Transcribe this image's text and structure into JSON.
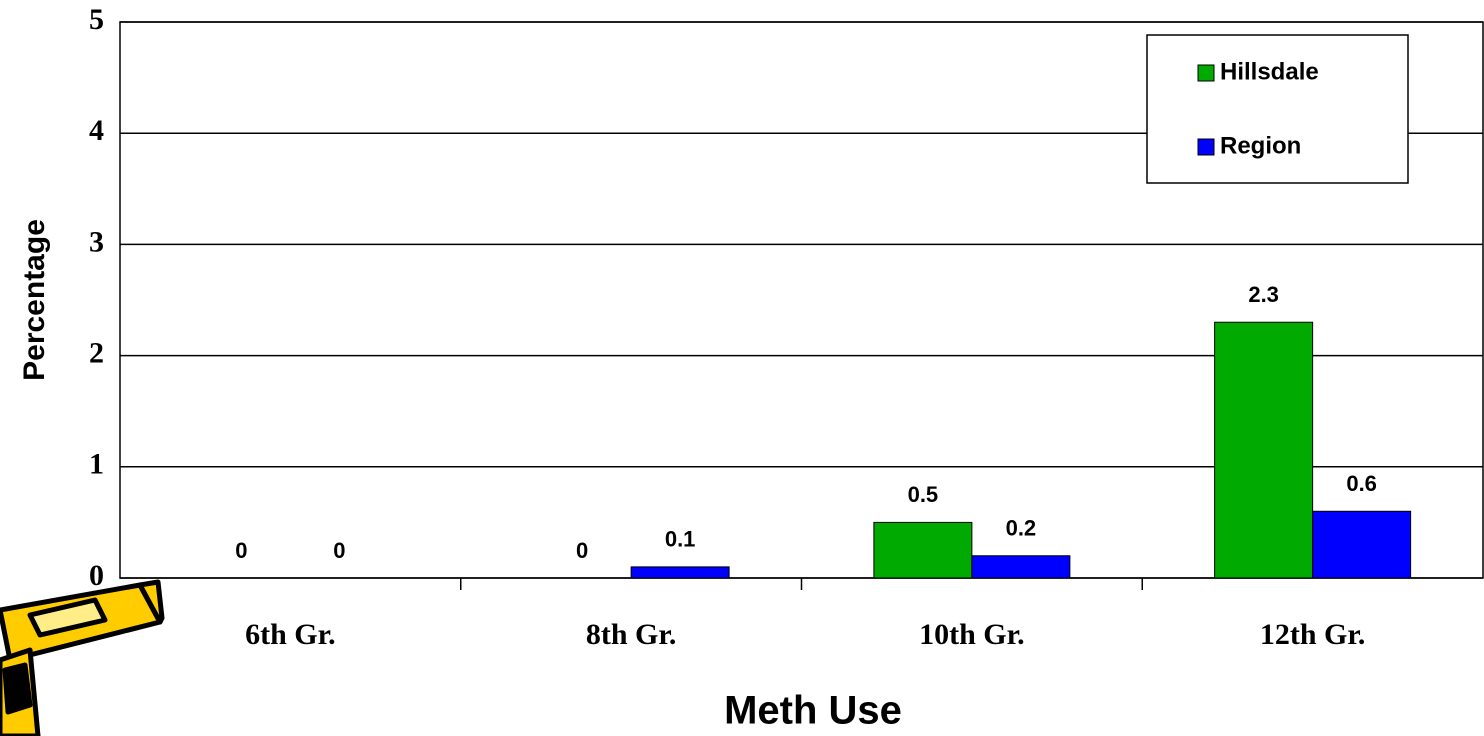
{
  "chart_data": {
    "type": "bar",
    "x_label": "Meth Use",
    "y_label": "Percentage",
    "categories": [
      "6th Gr.",
      "8th Gr.",
      "10th Gr.",
      "12th Gr."
    ],
    "series": [
      {
        "name": "Hillsdale",
        "color": "#00aa00",
        "values": [
          0,
          0,
          0.5,
          2.3
        ]
      },
      {
        "name": "Region",
        "color": "#0000ff",
        "values": [
          0,
          0.1,
          0.2,
          0.6
        ]
      }
    ],
    "ylim": [
      0,
      5
    ],
    "yticks": [
      0,
      1,
      2,
      3,
      4,
      5
    ],
    "grid": true,
    "legend": "top-right"
  }
}
